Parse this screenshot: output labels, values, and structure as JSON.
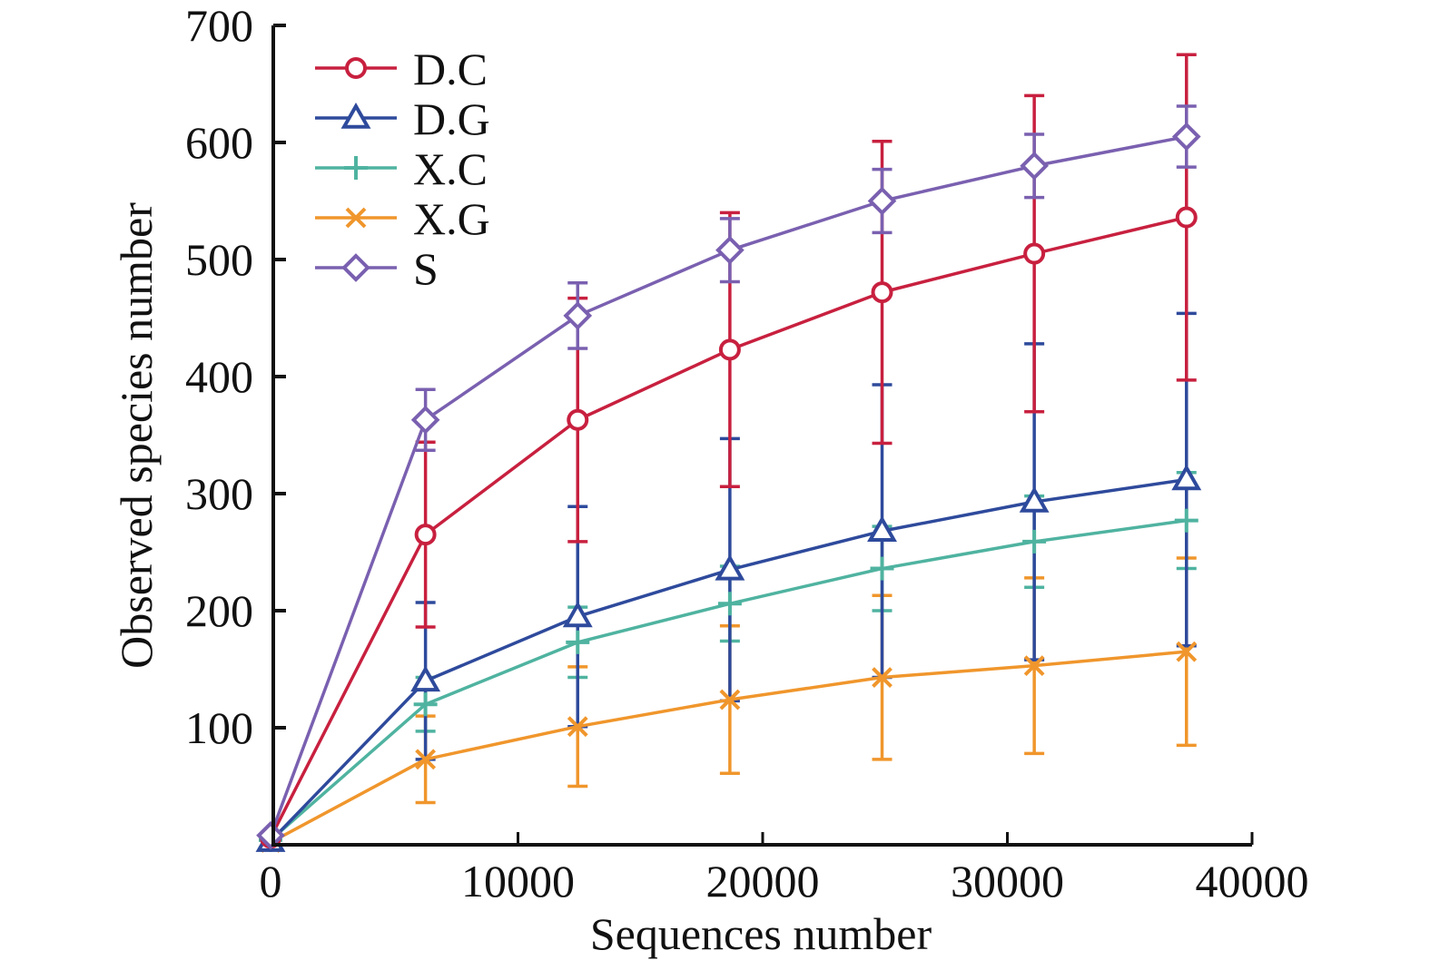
{
  "chart_data": {
    "type": "line",
    "title": "",
    "xlabel": "Sequences number",
    "ylabel": "Observed species number",
    "xlim": [
      0,
      40000
    ],
    "ylim": [
      0,
      700
    ],
    "xticks": [
      0,
      10000,
      20000,
      30000,
      40000
    ],
    "xtick_labels": [
      "0",
      "10000",
      "20000",
      "30000",
      "40000"
    ],
    "yticks": [
      100,
      200,
      300,
      400,
      500,
      600,
      700
    ],
    "ytick_labels": [
      "100",
      "200",
      "300",
      "400",
      "500",
      "600",
      "700"
    ],
    "grid": false,
    "legend_position": "top-left",
    "x": [
      0,
      6220,
      12440,
      18660,
      24880,
      31100,
      37320
    ],
    "series": [
      {
        "name": "D.C",
        "color": "#c8203f",
        "marker": "circle",
        "values": [
          6,
          265,
          363,
          423,
          472,
          505,
          536
        ],
        "error": [
          0,
          79,
          104,
          117,
          129,
          135,
          139
        ]
      },
      {
        "name": "D.G",
        "color": "#2e4a9c",
        "marker": "triangle",
        "values": [
          3,
          140,
          195,
          235,
          268,
          293,
          312
        ],
        "error": [
          0,
          67,
          94,
          112,
          125,
          135,
          142
        ]
      },
      {
        "name": "X.C",
        "color": "#4fb3a0",
        "marker": "plus",
        "values": [
          4,
          120,
          173,
          206,
          236,
          259,
          277
        ],
        "error": [
          0,
          23,
          30,
          32,
          36,
          39,
          41
        ]
      },
      {
        "name": "X.G",
        "color": "#f0962c",
        "marker": "x",
        "values": [
          2,
          73,
          101,
          124,
          143,
          153,
          165
        ],
        "error": [
          0,
          37,
          51,
          63,
          70,
          75,
          80
        ]
      },
      {
        "name": "S",
        "color": "#7a60b0",
        "marker": "diamond",
        "values": [
          8,
          363,
          452,
          508,
          550,
          580,
          605
        ],
        "error": [
          0,
          26,
          28,
          27,
          27,
          27,
          26
        ]
      }
    ]
  }
}
